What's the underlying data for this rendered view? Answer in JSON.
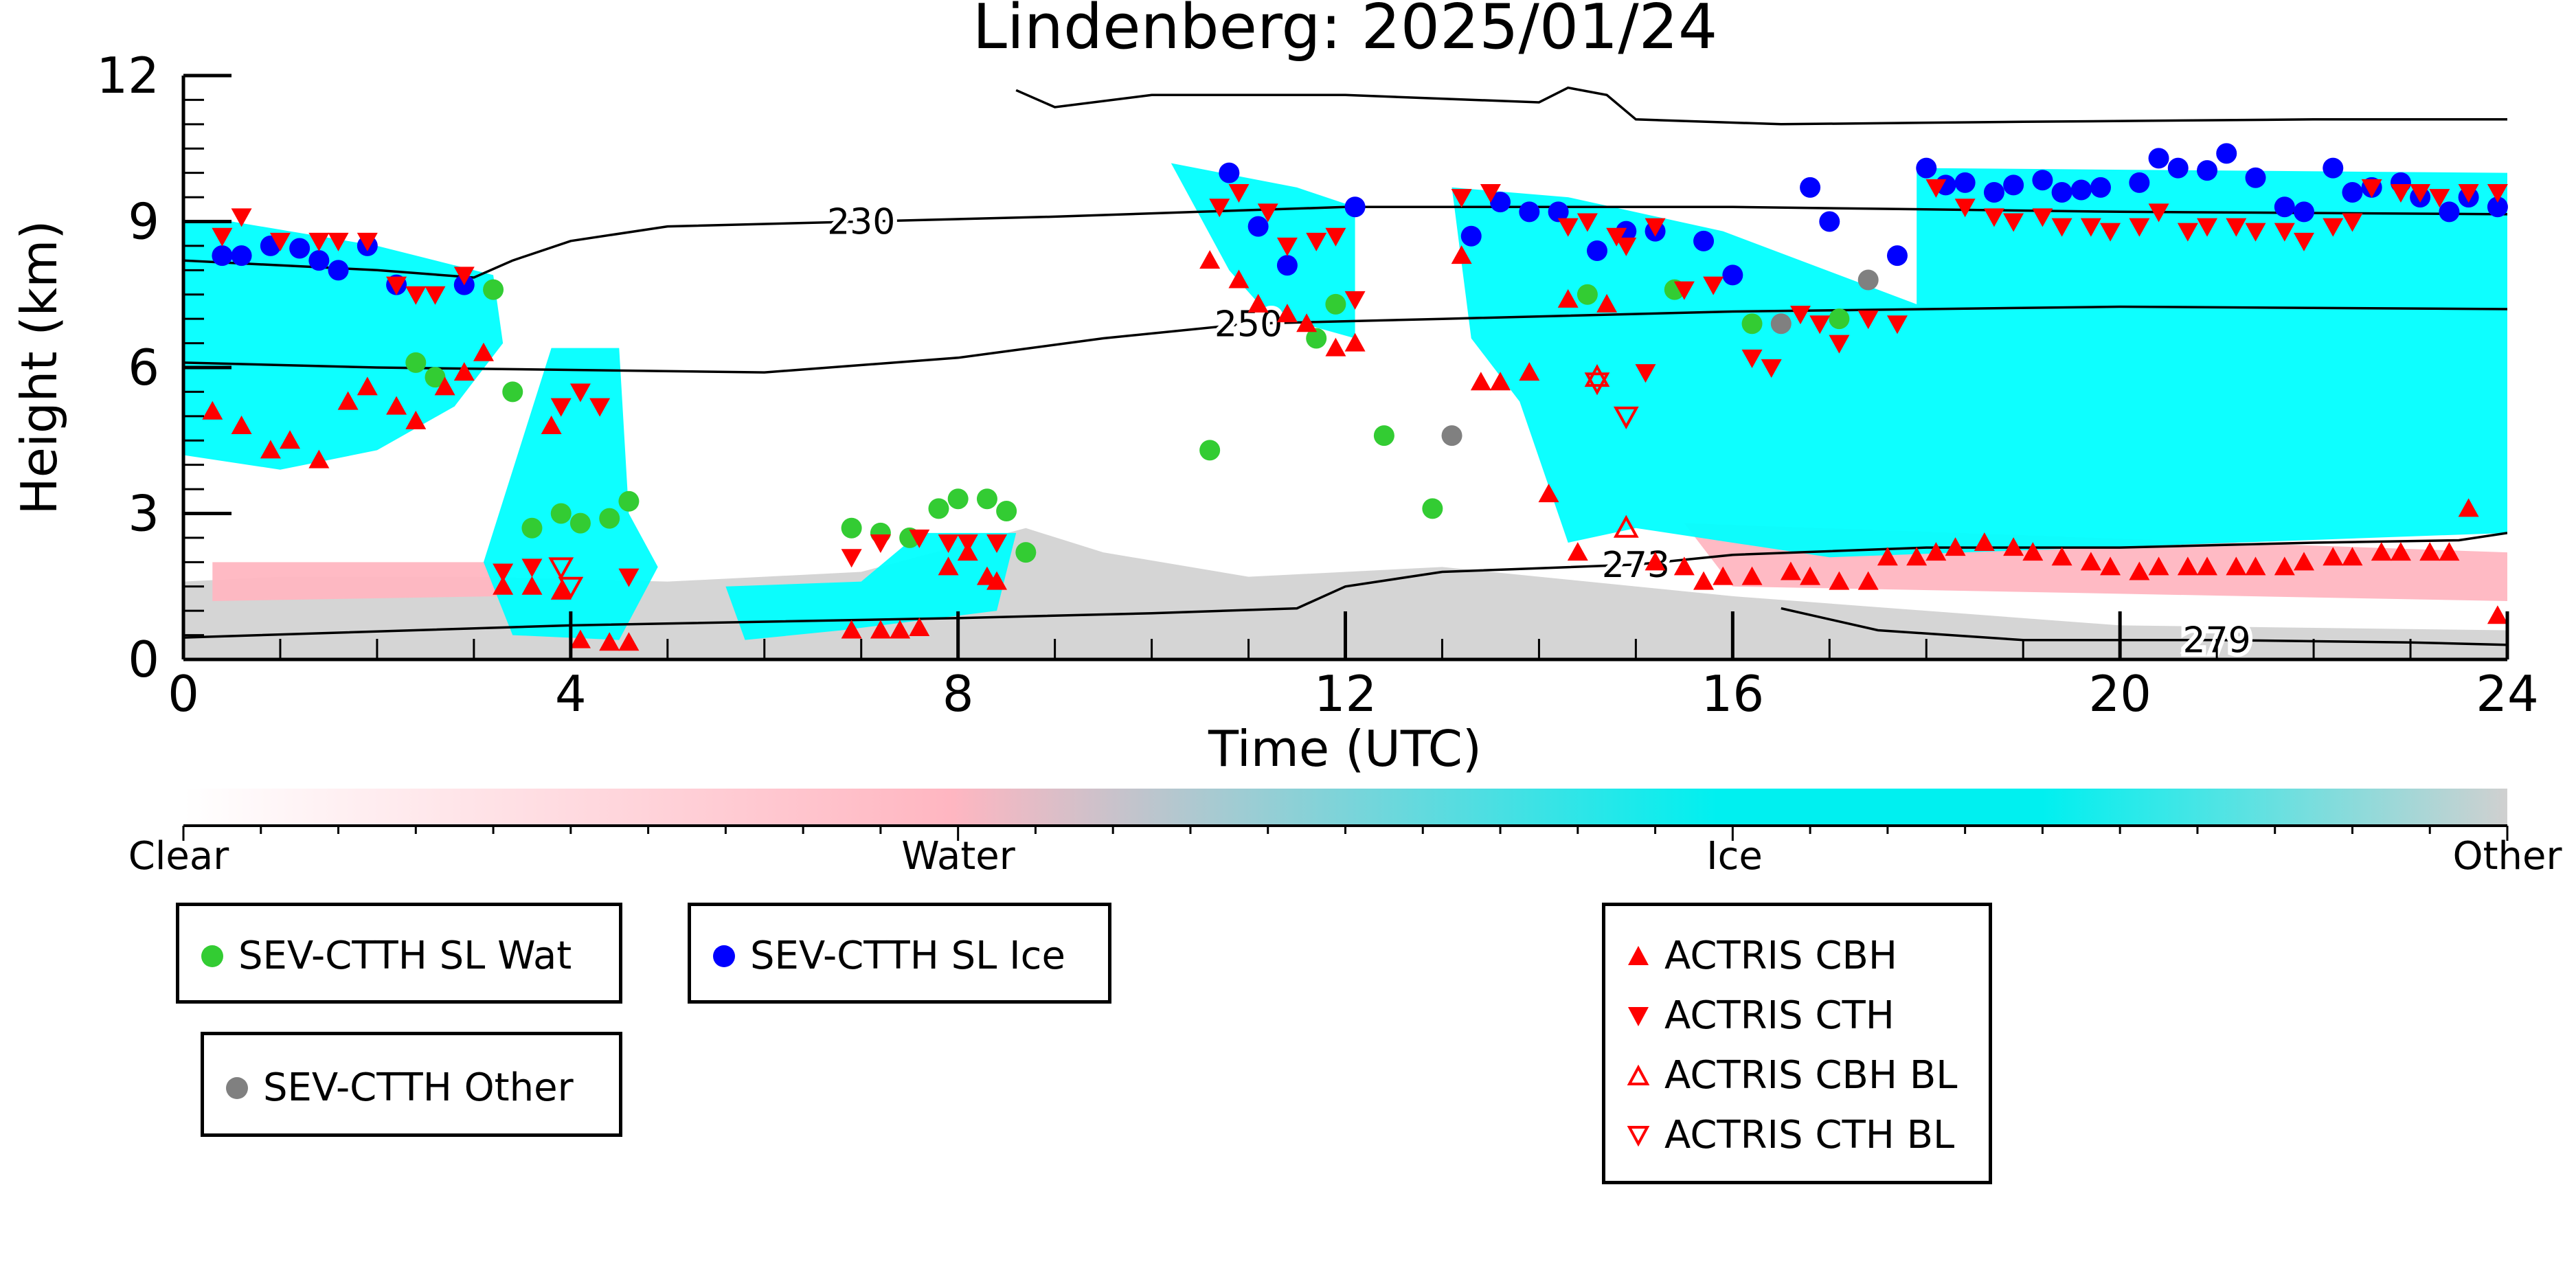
{
  "chart_data": {
    "type": "scatter",
    "title": "Lindenberg: 2025/01/24",
    "xlabel": "Time (UTC)",
    "ylabel": "Height (km)",
    "xlim": [
      0,
      24
    ],
    "ylim": [
      0,
      12
    ],
    "xticks": [
      "0",
      "4",
      "8",
      "12",
      "16",
      "20",
      "24"
    ],
    "yticks": [
      "0",
      "3",
      "6",
      "9",
      "12"
    ],
    "grid": false,
    "colorbar": {
      "labels": [
        "Clear",
        "Water",
        "Ice",
        "Other"
      ],
      "colors": [
        "#ffffff",
        "#ffb6c1",
        "#00ffff",
        "#d3d3d3"
      ]
    },
    "contours": [
      {
        "label": "230",
        "points": [
          [
            0,
            8.2
          ],
          [
            2,
            8.0
          ],
          [
            3,
            7.85
          ],
          [
            3.4,
            8.2
          ],
          [
            4,
            8.6
          ],
          [
            5,
            8.9
          ],
          [
            7,
            9.0
          ],
          [
            9,
            9.1
          ],
          [
            10.5,
            9.2
          ],
          [
            12,
            9.3
          ],
          [
            16,
            9.3
          ],
          [
            20,
            9.2
          ],
          [
            24,
            9.15
          ]
        ]
      },
      {
        "label": "250",
        "points": [
          [
            0,
            6.1
          ],
          [
            2,
            6.0
          ],
          [
            4,
            5.95
          ],
          [
            6,
            5.9
          ],
          [
            8,
            6.2
          ],
          [
            9.5,
            6.6
          ],
          [
            11,
            6.9
          ],
          [
            13,
            7.0
          ],
          [
            16,
            7.15
          ],
          [
            18,
            7.2
          ],
          [
            20,
            7.25
          ],
          [
            24,
            7.2
          ]
        ]
      },
      {
        "label": "273",
        "points": [
          [
            0,
            0.45
          ],
          [
            4,
            0.7
          ],
          [
            8,
            0.85
          ],
          [
            10,
            0.95
          ],
          [
            11.5,
            1.05
          ],
          [
            12,
            1.5
          ],
          [
            13,
            1.8
          ],
          [
            15,
            1.95
          ],
          [
            16,
            2.15
          ],
          [
            18,
            2.3
          ],
          [
            20,
            2.3
          ],
          [
            22,
            2.4
          ],
          [
            23.5,
            2.45
          ],
          [
            24,
            2.6
          ]
        ]
      },
      {
        "label": "279",
        "points": [
          [
            16.5,
            1.05
          ],
          [
            17.5,
            0.6
          ],
          [
            19,
            0.4
          ],
          [
            21,
            0.4
          ],
          [
            23,
            0.35
          ],
          [
            24,
            0.3
          ]
        ]
      },
      {
        "label": "",
        "points": [
          [
            8.6,
            11.7
          ],
          [
            9,
            11.35
          ],
          [
            10,
            11.6
          ],
          [
            12,
            11.6
          ],
          [
            14,
            11.45
          ],
          [
            14.3,
            11.75
          ],
          [
            14.7,
            11.6
          ],
          [
            15,
            11.1
          ],
          [
            16.5,
            11.0
          ],
          [
            19,
            11.05
          ],
          [
            22,
            11.1
          ],
          [
            24,
            11.1
          ]
        ]
      }
    ],
    "series": [
      {
        "name": "SEV-CTTH SL Wat",
        "marker": "circle",
        "color": "#33cc33",
        "points": [
          [
            2.4,
            6.1
          ],
          [
            2.6,
            5.8
          ],
          [
            3.2,
            7.6
          ],
          [
            3.4,
            5.5
          ],
          [
            3.6,
            2.7
          ],
          [
            3.9,
            3.0
          ],
          [
            4.1,
            2.8
          ],
          [
            4.4,
            2.9
          ],
          [
            4.6,
            3.25
          ],
          [
            6.9,
            2.7
          ],
          [
            7.2,
            2.6
          ],
          [
            7.5,
            2.5
          ],
          [
            7.8,
            3.1
          ],
          [
            8.0,
            3.3
          ],
          [
            8.3,
            3.3
          ],
          [
            8.5,
            3.05
          ],
          [
            8.7,
            2.2
          ],
          [
            10.6,
            4.3
          ],
          [
            11.7,
            6.6
          ],
          [
            11.9,
            7.3
          ],
          [
            12.4,
            4.6
          ],
          [
            12.9,
            3.1
          ],
          [
            14.5,
            7.5
          ],
          [
            15.4,
            7.6
          ],
          [
            16.2,
            6.9
          ],
          [
            17.1,
            7.0
          ]
        ]
      },
      {
        "name": "SEV-CTTH SL Ice",
        "marker": "circle",
        "color": "#0000ff",
        "points": [
          [
            0.4,
            8.3
          ],
          [
            0.6,
            8.3
          ],
          [
            0.9,
            8.5
          ],
          [
            1.2,
            8.45
          ],
          [
            1.4,
            8.2
          ],
          [
            1.6,
            8.0
          ],
          [
            1.9,
            8.5
          ],
          [
            2.2,
            7.7
          ],
          [
            2.9,
            7.7
          ],
          [
            10.8,
            10.0
          ],
          [
            11.1,
            8.9
          ],
          [
            11.4,
            8.1
          ],
          [
            12.1,
            9.3
          ],
          [
            13.3,
            8.7
          ],
          [
            13.6,
            9.4
          ],
          [
            13.9,
            9.2
          ],
          [
            14.2,
            9.2
          ],
          [
            14.6,
            8.4
          ],
          [
            14.9,
            8.8
          ],
          [
            15.2,
            8.8
          ],
          [
            15.7,
            8.6
          ],
          [
            16.0,
            7.9
          ],
          [
            16.8,
            9.7
          ],
          [
            17.0,
            9.0
          ],
          [
            17.7,
            8.3
          ],
          [
            18.0,
            10.1
          ],
          [
            18.2,
            9.75
          ],
          [
            18.4,
            9.8
          ],
          [
            18.7,
            9.6
          ],
          [
            18.9,
            9.75
          ],
          [
            19.2,
            9.85
          ],
          [
            19.4,
            9.6
          ],
          [
            19.6,
            9.65
          ],
          [
            19.8,
            9.7
          ],
          [
            20.2,
            9.8
          ],
          [
            20.4,
            10.3
          ],
          [
            20.6,
            10.1
          ],
          [
            20.9,
            10.05
          ],
          [
            21.1,
            10.4
          ],
          [
            21.4,
            9.9
          ],
          [
            21.7,
            9.3
          ],
          [
            21.9,
            9.2
          ],
          [
            22.2,
            10.1
          ],
          [
            22.4,
            9.6
          ],
          [
            22.6,
            9.7
          ],
          [
            22.9,
            9.8
          ],
          [
            23.1,
            9.5
          ],
          [
            23.4,
            9.2
          ],
          [
            23.6,
            9.5
          ],
          [
            23.9,
            9.3
          ]
        ]
      },
      {
        "name": "SEV-CTTH Other",
        "marker": "circle",
        "color": "#808080",
        "points": [
          [
            13.1,
            4.6
          ],
          [
            16.5,
            6.9
          ],
          [
            17.4,
            7.8
          ]
        ]
      },
      {
        "name": "ACTRIS CBH",
        "marker": "triangle-up",
        "color": "#ff0000",
        "points": [
          [
            0.3,
            5.1
          ],
          [
            0.6,
            4.8
          ],
          [
            0.9,
            4.3
          ],
          [
            1.1,
            4.5
          ],
          [
            1.4,
            4.1
          ],
          [
            1.7,
            5.3
          ],
          [
            1.9,
            5.6
          ],
          [
            2.2,
            5.2
          ],
          [
            2.4,
            4.9
          ],
          [
            2.7,
            5.6
          ],
          [
            2.9,
            5.9
          ],
          [
            3.1,
            6.3
          ],
          [
            3.3,
            1.5
          ],
          [
            3.6,
            1.5
          ],
          [
            3.8,
            4.8
          ],
          [
            3.9,
            1.4
          ],
          [
            4.1,
            0.4
          ],
          [
            4.4,
            0.35
          ],
          [
            4.6,
            0.35
          ],
          [
            6.9,
            0.6
          ],
          [
            7.2,
            0.6
          ],
          [
            7.4,
            0.6
          ],
          [
            7.6,
            0.65
          ],
          [
            7.9,
            1.9
          ],
          [
            8.1,
            2.2
          ],
          [
            8.3,
            1.7
          ],
          [
            8.4,
            1.6
          ],
          [
            10.6,
            8.2
          ],
          [
            10.9,
            7.8
          ],
          [
            11.1,
            7.3
          ],
          [
            11.4,
            7.1
          ],
          [
            11.6,
            6.9
          ],
          [
            11.9,
            6.4
          ],
          [
            12.1,
            6.5
          ],
          [
            13.2,
            8.3
          ],
          [
            13.4,
            5.7
          ],
          [
            13.6,
            5.7
          ],
          [
            13.9,
            5.9
          ],
          [
            14.1,
            3.4
          ],
          [
            14.3,
            7.4
          ],
          [
            14.4,
            2.2
          ],
          [
            14.7,
            7.3
          ],
          [
            15.2,
            2.0
          ],
          [
            15.5,
            1.9
          ],
          [
            15.7,
            1.6
          ],
          [
            15.9,
            1.7
          ],
          [
            16.2,
            1.7
          ],
          [
            16.6,
            1.8
          ],
          [
            16.8,
            1.7
          ],
          [
            17.1,
            1.6
          ],
          [
            17.4,
            1.6
          ],
          [
            17.6,
            2.1
          ],
          [
            17.9,
            2.1
          ],
          [
            18.1,
            2.2
          ],
          [
            18.3,
            2.3
          ],
          [
            18.6,
            2.4
          ],
          [
            18.9,
            2.3
          ],
          [
            19.1,
            2.2
          ],
          [
            19.4,
            2.1
          ],
          [
            19.7,
            2.0
          ],
          [
            19.9,
            1.9
          ],
          [
            20.2,
            1.8
          ],
          [
            20.4,
            1.9
          ],
          [
            20.7,
            1.9
          ],
          [
            20.9,
            1.9
          ],
          [
            21.2,
            1.9
          ],
          [
            21.4,
            1.9
          ],
          [
            21.7,
            1.9
          ],
          [
            21.9,
            2.0
          ],
          [
            22.2,
            2.1
          ],
          [
            22.4,
            2.1
          ],
          [
            22.7,
            2.2
          ],
          [
            22.9,
            2.2
          ],
          [
            23.2,
            2.2
          ],
          [
            23.4,
            2.2
          ],
          [
            23.6,
            3.1
          ],
          [
            23.9,
            0.9
          ]
        ]
      },
      {
        "name": "ACTRIS CTH",
        "marker": "triangle-down",
        "color": "#ff0000",
        "points": [
          [
            0.4,
            8.7
          ],
          [
            0.6,
            9.1
          ],
          [
            1.0,
            8.6
          ],
          [
            1.4,
            8.6
          ],
          [
            1.6,
            8.6
          ],
          [
            1.9,
            8.6
          ],
          [
            2.2,
            7.7
          ],
          [
            2.4,
            7.5
          ],
          [
            2.6,
            7.5
          ],
          [
            2.9,
            7.9
          ],
          [
            3.3,
            1.8
          ],
          [
            3.6,
            1.9
          ],
          [
            3.9,
            5.2
          ],
          [
            4.1,
            5.5
          ],
          [
            4.3,
            5.2
          ],
          [
            4.6,
            1.7
          ],
          [
            6.9,
            2.1
          ],
          [
            7.2,
            2.4
          ],
          [
            7.6,
            2.5
          ],
          [
            7.9,
            2.4
          ],
          [
            8.1,
            2.4
          ],
          [
            8.4,
            2.4
          ],
          [
            10.7,
            9.3
          ],
          [
            10.9,
            9.6
          ],
          [
            11.2,
            9.2
          ],
          [
            11.4,
            8.5
          ],
          [
            11.7,
            8.6
          ],
          [
            11.9,
            8.7
          ],
          [
            12.1,
            7.4
          ],
          [
            13.2,
            9.5
          ],
          [
            13.5,
            9.6
          ],
          [
            14.3,
            8.9
          ],
          [
            14.5,
            9.0
          ],
          [
            14.8,
            8.7
          ],
          [
            14.9,
            8.5
          ],
          [
            15.1,
            5.9
          ],
          [
            15.2,
            8.9
          ],
          [
            15.5,
            7.6
          ],
          [
            15.8,
            7.7
          ],
          [
            16.2,
            6.2
          ],
          [
            16.4,
            6.0
          ],
          [
            16.7,
            7.1
          ],
          [
            16.9,
            6.9
          ],
          [
            17.1,
            6.5
          ],
          [
            17.4,
            7.0
          ],
          [
            17.7,
            6.9
          ],
          [
            18.1,
            9.7
          ],
          [
            18.4,
            9.3
          ],
          [
            18.7,
            9.1
          ],
          [
            18.9,
            9.0
          ],
          [
            19.2,
            9.1
          ],
          [
            19.4,
            8.9
          ],
          [
            19.7,
            8.9
          ],
          [
            19.9,
            8.8
          ],
          [
            20.2,
            8.9
          ],
          [
            20.4,
            9.2
          ],
          [
            20.7,
            8.8
          ],
          [
            20.9,
            8.9
          ],
          [
            21.2,
            8.9
          ],
          [
            21.4,
            8.8
          ],
          [
            21.7,
            8.8
          ],
          [
            21.9,
            8.6
          ],
          [
            22.2,
            8.9
          ],
          [
            22.4,
            9.0
          ],
          [
            22.6,
            9.7
          ],
          [
            22.9,
            9.6
          ],
          [
            23.1,
            9.6
          ],
          [
            23.3,
            9.5
          ],
          [
            23.6,
            9.6
          ],
          [
            23.9,
            9.6
          ]
        ]
      },
      {
        "name": "ACTRIS CBH BL",
        "marker": "triangle-up-open",
        "color": "#ff0000",
        "points": [
          [
            14.6,
            5.8
          ],
          [
            14.9,
            2.7
          ]
        ]
      },
      {
        "name": "ACTRIS CTH BL",
        "marker": "triangle-down-open",
        "color": "#ff0000",
        "points": [
          [
            3.9,
            1.9
          ],
          [
            4.0,
            1.5
          ],
          [
            14.6,
            5.7
          ],
          [
            14.9,
            5.0
          ]
        ]
      }
    ]
  },
  "legends": {
    "wat": "SEV-CTTH SL Wat",
    "ice": "SEV-CTTH SL Ice",
    "other": "SEV-CTTH Other",
    "cbh": "ACTRIS CBH",
    "cth": "ACTRIS CTH",
    "cbh_bl": "ACTRIS CBH BL",
    "cth_bl": "ACTRIS CTH BL"
  }
}
